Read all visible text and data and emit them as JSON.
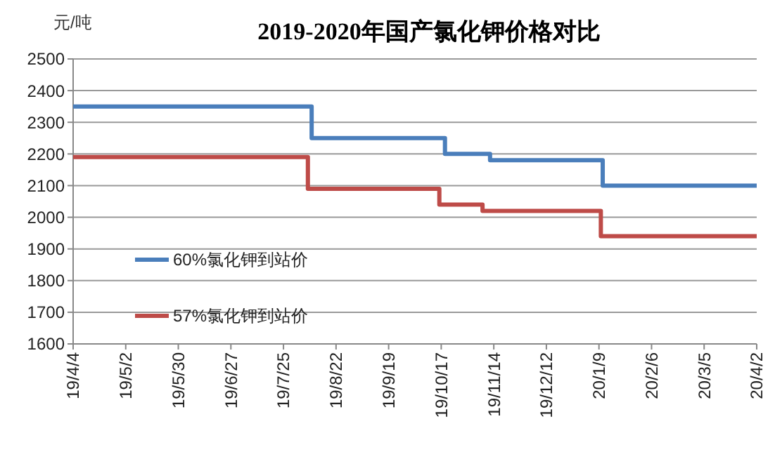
{
  "chart_data": {
    "type": "step",
    "title": "2019-2020年国产氯化钾价格对比",
    "ylabel": "元/吨",
    "xlim": [
      "2019-04-04",
      "2020-04-02"
    ],
    "xticks": [
      {
        "value": "2019-04-04",
        "label": "19/4/4"
      },
      {
        "value": "2019-05-02",
        "label": "19/5/2"
      },
      {
        "value": "2019-05-30",
        "label": "19/5/30"
      },
      {
        "value": "2019-06-27",
        "label": "19/6/27"
      },
      {
        "value": "2019-07-25",
        "label": "19/7/25"
      },
      {
        "value": "2019-08-22",
        "label": "19/8/22"
      },
      {
        "value": "2019-09-19",
        "label": "19/9/19"
      },
      {
        "value": "2019-10-17",
        "label": "19/10/17"
      },
      {
        "value": "2019-11-14",
        "label": "19/11/14"
      },
      {
        "value": "2019-12-12",
        "label": "19/12/12"
      },
      {
        "value": "2020-01-09",
        "label": "20/1/9"
      },
      {
        "value": "2020-02-06",
        "label": "20/2/6"
      },
      {
        "value": "2020-03-05",
        "label": "20/3/5"
      },
      {
        "value": "2020-04-02",
        "label": "20/4/2"
      }
    ],
    "ylim": [
      1600,
      2500
    ],
    "yticks": [
      1600,
      1700,
      1800,
      1900,
      2000,
      2100,
      2200,
      2300,
      2400,
      2500
    ],
    "grid": "y",
    "legend": "left",
    "line_style": "solid",
    "marker": "none",
    "series": [
      {
        "name": "60%氯化钾到站价",
        "color": "#4a7ebb",
        "x": [
          "2019-04-04",
          "2019-08-09",
          "2019-10-19",
          "2019-11-12",
          "2020-01-11",
          "2020-04-02"
        ],
        "values": [
          2350,
          2250,
          2200,
          2180,
          2100,
          2100
        ]
      },
      {
        "name": "57%氯化钾到站价",
        "color": "#be4b48",
        "x": [
          "2019-04-04",
          "2019-08-07",
          "2019-10-16",
          "2019-11-08",
          "2020-01-10",
          "2020-04-02"
        ],
        "values": [
          2190,
          2090,
          2040,
          2020,
          1940,
          1940
        ]
      }
    ]
  }
}
